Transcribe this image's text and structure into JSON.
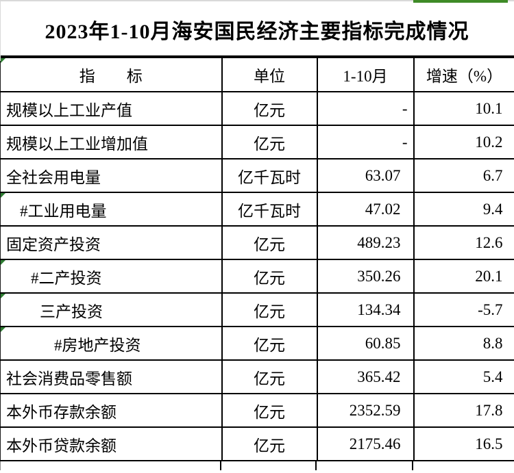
{
  "title": "2023年1-10月海安国民经济主要指标完成情况",
  "colors": {
    "green_cell_bar": "#3f8b27",
    "cell_flag_triangle": "#2e7d32",
    "gridline_gray": "#d9d9d9",
    "table_border": "#000000"
  },
  "table": {
    "headers": {
      "indicator": "指　　标",
      "unit": "单位",
      "period": "1-10月",
      "growth": "增速（%）"
    },
    "rows": [
      {
        "indicator": "规模以上工业产值",
        "unit": "亿元",
        "value": "-",
        "growth": "10.1"
      },
      {
        "indicator": "规模以上工业增加值",
        "unit": "亿元",
        "value": "-",
        "growth": "10.2"
      },
      {
        "indicator": "全社会用电量",
        "unit": "亿千瓦时",
        "value": "63.07",
        "growth": "6.7"
      },
      {
        "indicator": "#工业用电量",
        "unit": "亿千瓦时",
        "value": "47.02",
        "growth": "9.4"
      },
      {
        "indicator": "固定资产投资",
        "unit": "亿元",
        "value": "489.23",
        "growth": "12.6"
      },
      {
        "indicator": "#二产投资",
        "unit": "亿元",
        "value": "350.26",
        "growth": "20.1"
      },
      {
        "indicator": "三产投资",
        "unit": "亿元",
        "value": "134.34",
        "growth": "-5.7"
      },
      {
        "indicator": "#房地产投资",
        "unit": "亿元",
        "value": "60.85",
        "growth": "8.8"
      },
      {
        "indicator": "社会消费品零售额",
        "unit": "亿元",
        "value": "365.42",
        "growth": "5.4"
      },
      {
        "indicator": "本外币存款余额",
        "unit": "亿元",
        "value": "2352.59",
        "growth": "17.8"
      },
      {
        "indicator": "本外币贷款余额",
        "unit": "亿元",
        "value": "2175.46",
        "growth": "16.5"
      }
    ]
  }
}
